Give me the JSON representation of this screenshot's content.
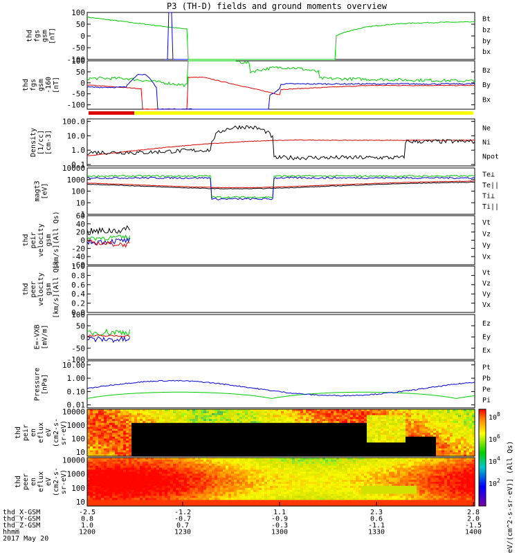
{
  "title": "P3 (TH-D) fields and ground moments overview",
  "colors": {
    "black": "#000000",
    "red": "#dd0000",
    "green": "#00cc00",
    "blue": "#0000dd",
    "yellow": "#ffff00"
  },
  "chart_data": [
    {
      "type": "line",
      "panel": 1,
      "ylabel": [
        "thd",
        "fgs",
        "gsm",
        "[nT]"
      ],
      "yticks": [
        "100",
        "50",
        "0",
        "-50",
        "-100"
      ],
      "ylim": [
        -100,
        100
      ],
      "series": [
        {
          "name": "Bt",
          "color": "black"
        },
        {
          "name": "bz",
          "color": "red"
        },
        {
          "name": "by",
          "color": "green"
        },
        {
          "name": "bx",
          "color": "blue"
        }
      ]
    },
    {
      "type": "line",
      "panel": 2,
      "ylabel": [
        "thd",
        "fgs",
        "gsm",
        "-160",
        "[nT]"
      ],
      "yticks": [
        "100",
        "50",
        "0",
        "-50",
        "-100"
      ],
      "ylim": [
        -120,
        100
      ],
      "series": [
        {
          "name": "Bz",
          "color": "red"
        },
        {
          "name": "By",
          "color": "green"
        },
        {
          "name": "Bx",
          "color": "blue"
        }
      ]
    },
    {
      "type": "line",
      "panel": 3,
      "ylabel": [
        "Density",
        "[1/cc]",
        "[cm-3]"
      ],
      "yticks": [
        "100.0",
        "10.0",
        "1.0",
        "0.1"
      ],
      "ylim": [
        0.08,
        150
      ],
      "scale": "log",
      "series": [
        {
          "name": "Ne",
          "color": "red"
        },
        {
          "name": "Ni",
          "color": "black"
        },
        {
          "name": "Npot",
          "color": "blue"
        }
      ]
    },
    {
      "type": "line",
      "panel": 4,
      "ylabel": [
        "magt3",
        "[eV]"
      ],
      "yticks": [
        "10000",
        "1000",
        "100",
        "10",
        "1"
      ],
      "ylim": [
        1,
        10000
      ],
      "scale": "log",
      "series": [
        {
          "name": "Te⊥",
          "color": "red"
        },
        {
          "name": "Te||",
          "color": "black"
        },
        {
          "name": "Ti⊥",
          "color": "blue"
        },
        {
          "name": "Ti||",
          "color": "green"
        }
      ]
    },
    {
      "type": "line",
      "panel": 5,
      "ylabel": [
        "thd",
        "peir",
        "velocity",
        "gsm",
        "[km/s](All Qs)"
      ],
      "yticks": [
        "60",
        "40",
        "20",
        "0",
        "-20",
        "-40",
        "-60"
      ],
      "ylim": [
        -60,
        60
      ],
      "series": [
        {
          "name": "Vt",
          "color": "black"
        },
        {
          "name": "Vz",
          "color": "red"
        },
        {
          "name": "Vy",
          "color": "green"
        },
        {
          "name": "Vx",
          "color": "blue"
        }
      ]
    },
    {
      "type": "line",
      "panel": 6,
      "ylabel": [
        "thd",
        "peer",
        "velocity",
        "gsm",
        "[km/s](All Qs)"
      ],
      "yticks": [
        "1.0",
        "0.8",
        "0.6",
        "0.4",
        "0.2",
        "0.0"
      ],
      "ylim": [
        0,
        1
      ],
      "series": [
        {
          "name": "Vt",
          "color": "black"
        },
        {
          "name": "Vz",
          "color": "red"
        },
        {
          "name": "Vy",
          "color": "green"
        },
        {
          "name": "Vx",
          "color": "blue"
        }
      ]
    },
    {
      "type": "line",
      "panel": 7,
      "ylabel": [
        "E=-VXB",
        "[mV/m]"
      ],
      "yticks": [
        "100",
        "50",
        "0",
        "-50",
        "-100"
      ],
      "ylim": [
        -100,
        100
      ],
      "series": [
        {
          "name": "Ez",
          "color": "red"
        },
        {
          "name": "Ey",
          "color": "green"
        },
        {
          "name": "Ex",
          "color": "blue"
        }
      ]
    },
    {
      "type": "line",
      "panel": 8,
      "ylabel": [
        "Pressure",
        "[nPa]"
      ],
      "yticks": [
        "10.00",
        "1.00",
        "0.10",
        "0.01"
      ],
      "ylim": [
        0.006,
        20
      ],
      "scale": "log",
      "series": [
        {
          "name": "Pt",
          "color": "black"
        },
        {
          "name": "Pb",
          "color": "red"
        },
        {
          "name": "Pe",
          "color": "green"
        },
        {
          "name": "Pi",
          "color": "blue"
        }
      ]
    },
    {
      "type": "heatmap",
      "panel": 9,
      "ylabel": [
        "thd",
        "peir",
        "en",
        "eflux",
        "eV",
        "(cm2-s-",
        "sr-eV)"
      ],
      "yticks": [
        "10000",
        "1000",
        "100",
        "10"
      ],
      "ylim": [
        5,
        15000
      ],
      "scale": "log"
    },
    {
      "type": "heatmap",
      "panel": 10,
      "ylabel": [
        "thd",
        "peer",
        "en",
        "eflux",
        "eV",
        "(cm2-s-",
        "sr-eV)"
      ],
      "yticks": [
        "10000",
        "1000",
        "100",
        "10"
      ],
      "ylim": [
        5,
        15000
      ],
      "scale": "log"
    }
  ],
  "colorbar": {
    "ticks": [
      "10^8",
      "10^6",
      "10^4",
      "10^2"
    ],
    "label": "[eV/(cm^2-s-sr-eV)] (All Qs)"
  },
  "xaxis": {
    "rows": [
      {
        "label": "thd_X-GSM",
        "values": [
          "-2.5",
          "-1.2",
          "1.1",
          "2.3",
          "2.8"
        ]
      },
      {
        "label": "thd_Y-GSM",
        "values": [
          "0.8",
          "-0.7",
          "-0.9",
          "0.6",
          "2.0"
        ]
      },
      {
        "label": "thd_Z-GSM",
        "values": [
          "1.0",
          "0.7",
          "-0.3",
          "-1.1",
          "-1.5"
        ]
      },
      {
        "label": "hhmm",
        "values": [
          "1200",
          "1230",
          "1300",
          "1330",
          "1400"
        ]
      }
    ],
    "date": "2017 May 20"
  }
}
